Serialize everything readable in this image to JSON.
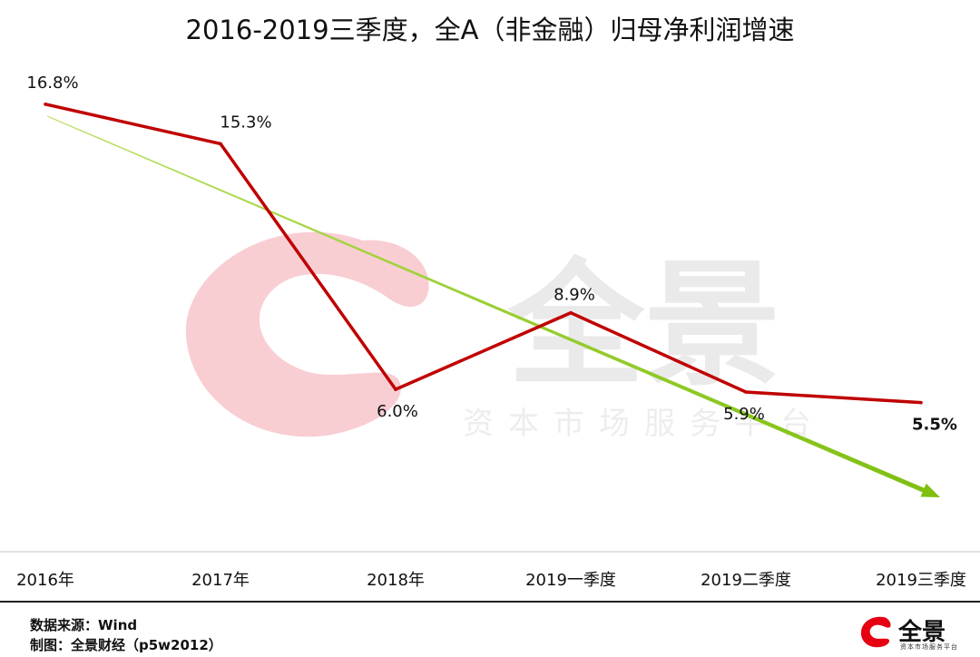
{
  "chart_data": {
    "type": "line",
    "title": "2016-2019三季度，全A（非金融）归母净利润增速",
    "categories": [
      "2016年",
      "2017年",
      "2018年",
      "2019一季度",
      "2019二季度",
      "2019三季度"
    ],
    "series": [
      {
        "name": "归母净利润增速",
        "values": [
          16.8,
          15.3,
          6.0,
          8.9,
          5.9,
          5.5
        ],
        "color": "#c00000"
      }
    ],
    "data_labels": [
      "16.8%",
      "15.3%",
      "6.0%",
      "8.9%",
      "5.9%",
      "5.5%"
    ],
    "trend_arrow_color": "#8cc81e",
    "xlabel": "",
    "ylabel": "",
    "ylim": [
      0,
      20
    ],
    "grid": false,
    "legend": "none"
  },
  "watermark": {
    "brand": "全景",
    "tagline": "资本市场服务平台"
  },
  "footer": {
    "source": "数据来源：Wind",
    "author": "制图：全景财经（p5w2012）",
    "logo_text": "全景",
    "logo_sub": "资本市场服务平台"
  }
}
